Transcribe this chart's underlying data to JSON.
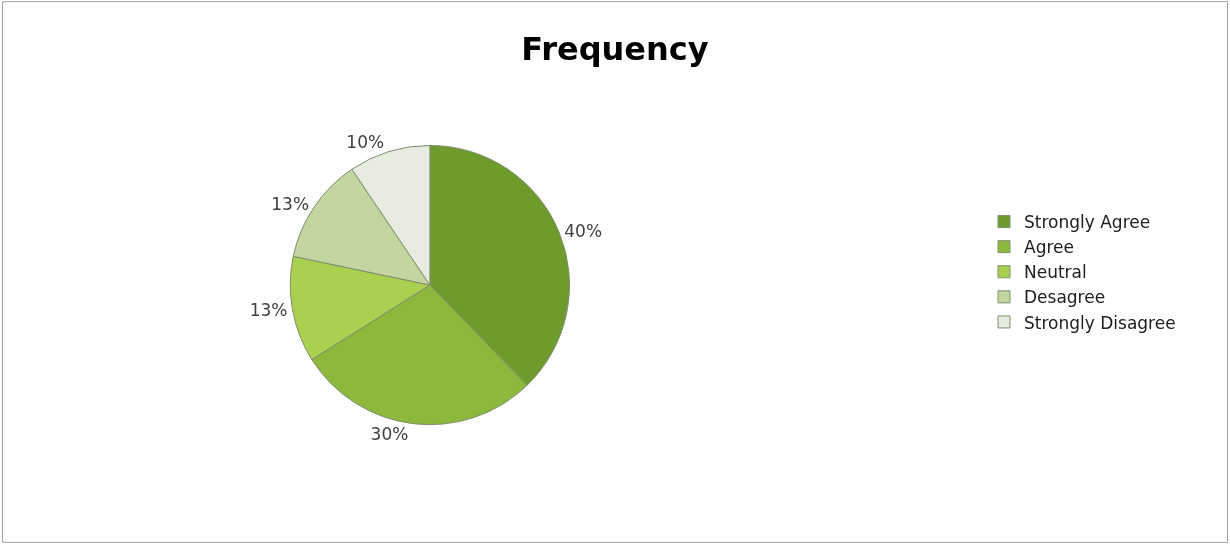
{
  "chart_data": {
    "type": "pie",
    "title": "Frequency",
    "categories": [
      "Strongly Agree",
      "Agree",
      "Neutral",
      "Desagree",
      "Strongly Disagree"
    ],
    "values": [
      40,
      30,
      13,
      13,
      10
    ],
    "value_labels": [
      "40%",
      "30%",
      "13%",
      "13%",
      "10%"
    ],
    "colors": [
      "#6f9a2c",
      "#8db83c",
      "#a9d04e",
      "#c3d6a0",
      "#e8ebdf"
    ],
    "legend": "right"
  }
}
